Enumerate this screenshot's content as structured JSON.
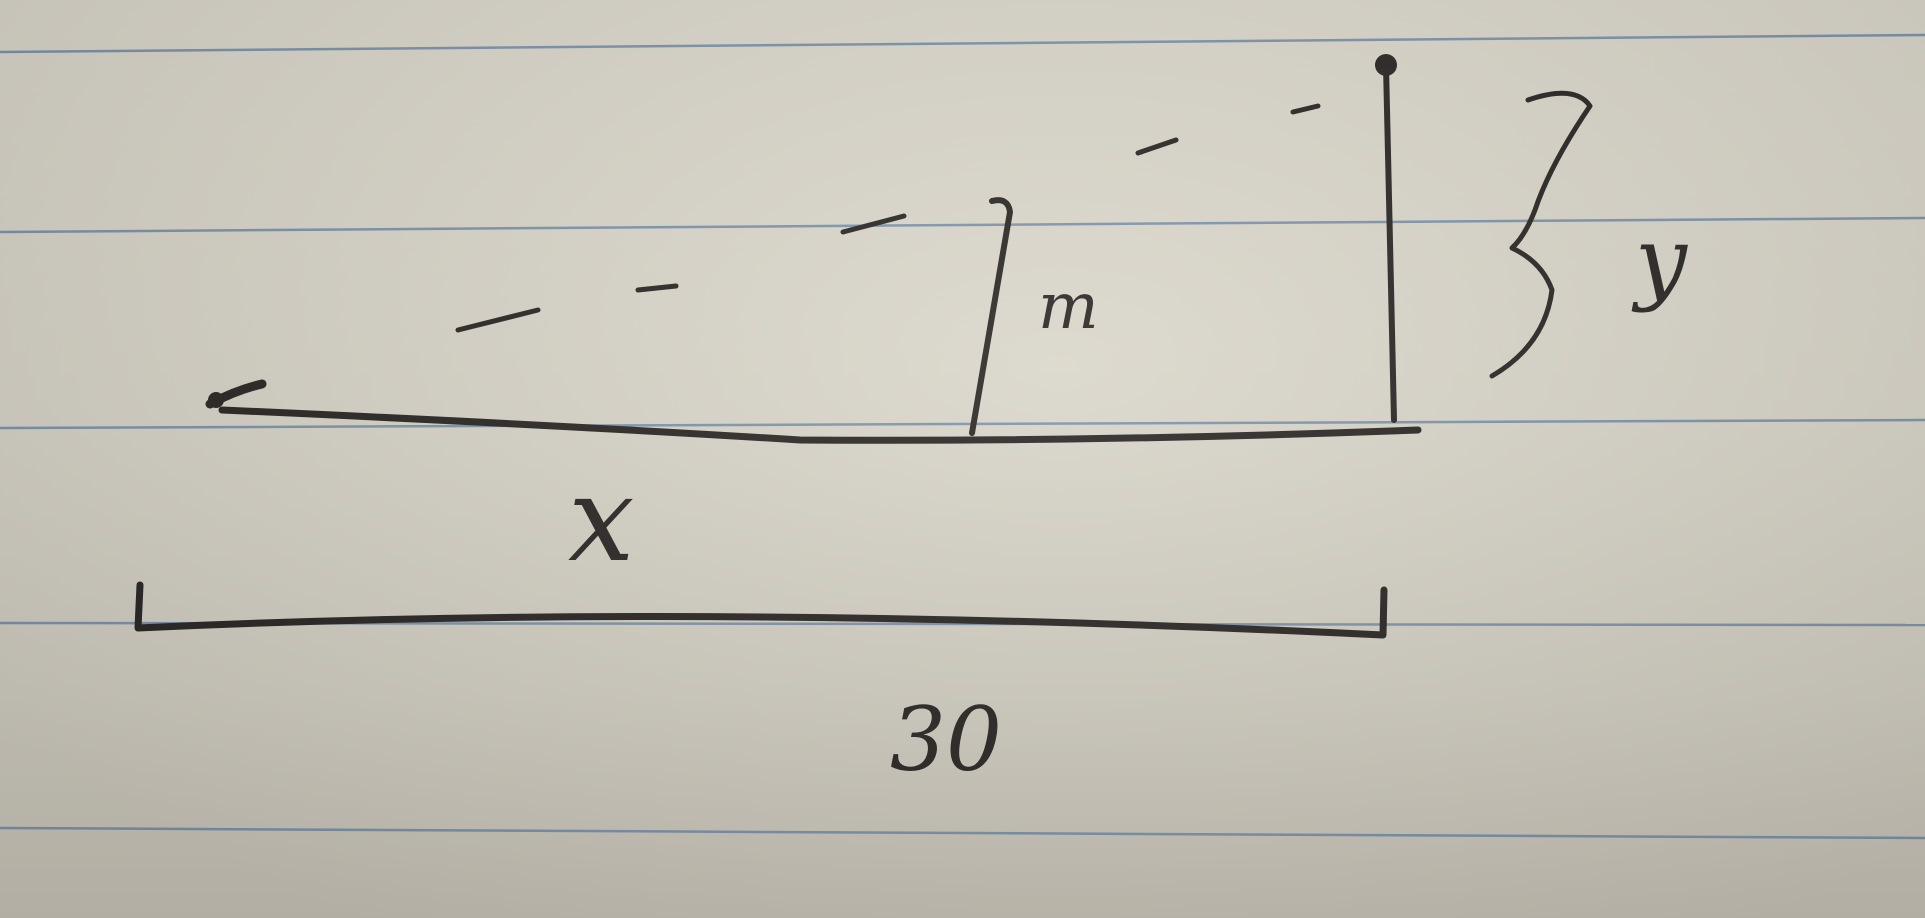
{
  "labels": {
    "horizontal_distance": "x",
    "height_gap": "y",
    "middle_post": "m",
    "total_length": "30"
  },
  "colors": {
    "ink": "#2a2624",
    "ruled_line": "#6d8aa6",
    "paper": "#d9d5c9"
  }
}
